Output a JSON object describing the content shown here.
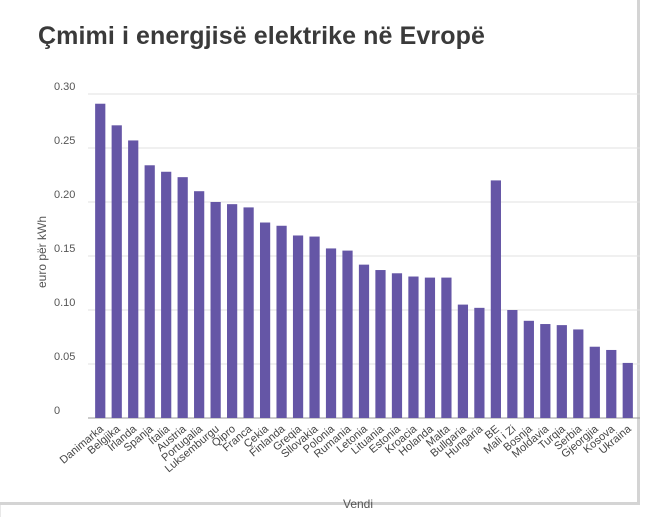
{
  "chart_data": {
    "type": "bar",
    "title": "Çmimi i energjisë elektrike në Evropë",
    "xlabel": "Vendi",
    "ylabel": "euro për kWh",
    "ylim": [
      0,
      0.3
    ],
    "yticks": [
      "0",
      "0.05",
      "0.10",
      "0.15",
      "0.20",
      "0.25",
      "0.30"
    ],
    "grid": true,
    "bar_color": "#6556a6",
    "categories": [
      "Danimarka",
      "Belgjika",
      "Irlanda",
      "Spanja",
      "Italia",
      "Austria",
      "Portugalia",
      "Luksemburgu",
      "Qipro",
      "Franca",
      "Çekia",
      "Finlanda",
      "Greqia",
      "Sllovakia",
      "Polonia",
      "Rumania",
      "Letonia",
      "Lituania",
      "Estonia",
      "Kroacia",
      "Holanda",
      "Malta",
      "Bullgaria",
      "Hungaria",
      "BE",
      "Mali i Zi",
      "Bosnja",
      "Moldavia",
      "Turqia",
      "Serbia",
      "Gjeorgjia",
      "Kosova",
      "Ukraina"
    ],
    "values": [
      0.291,
      0.271,
      0.257,
      0.234,
      0.228,
      0.223,
      0.21,
      0.2,
      0.198,
      0.195,
      0.181,
      0.178,
      0.169,
      0.168,
      0.157,
      0.155,
      0.142,
      0.137,
      0.134,
      0.131,
      0.13,
      0.13,
      0.105,
      0.102,
      0.22,
      0.1,
      0.09,
      0.087,
      0.086,
      0.082,
      0.066,
      0.063,
      0.051
    ]
  }
}
